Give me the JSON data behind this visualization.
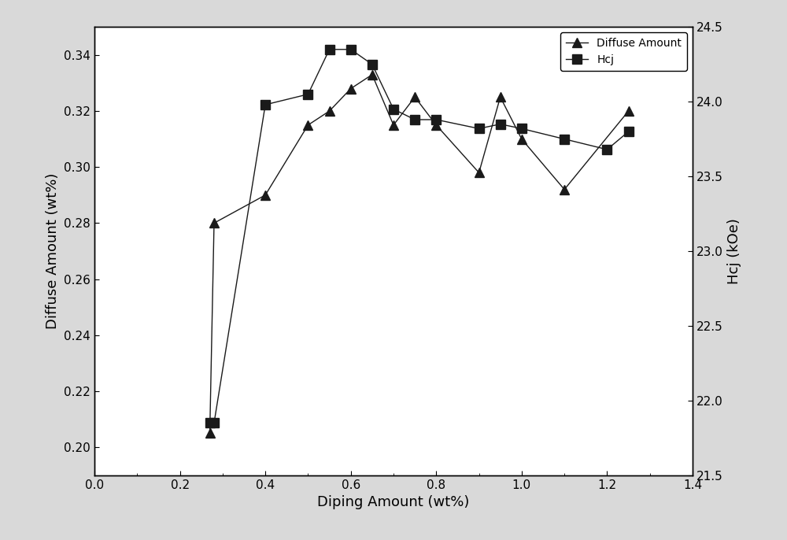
{
  "diffuse_x": [
    0.27,
    0.28,
    0.4,
    0.5,
    0.55,
    0.6,
    0.65,
    0.7,
    0.75,
    0.8,
    0.9,
    0.95,
    1.0,
    1.1,
    1.25
  ],
  "diffuse_y": [
    0.205,
    0.28,
    0.29,
    0.315,
    0.32,
    0.328,
    0.333,
    0.315,
    0.325,
    0.315,
    0.298,
    0.325,
    0.31,
    0.292,
    0.32
  ],
  "hcj_x": [
    0.27,
    0.28,
    0.4,
    0.5,
    0.55,
    0.6,
    0.65,
    0.7,
    0.75,
    0.8,
    0.9,
    0.95,
    1.0,
    1.1,
    1.2,
    1.25
  ],
  "hcj_y": [
    21.85,
    21.85,
    23.98,
    24.05,
    24.35,
    24.35,
    24.25,
    23.95,
    23.88,
    23.88,
    23.82,
    23.85,
    23.82,
    23.75,
    23.68,
    23.8
  ],
  "xlabel": "Diping Amount (wt%)",
  "ylabel_left": "Diffuse Amount (wt%)",
  "ylabel_right": "Hcj (kOe)",
  "legend_diffuse": "Diffuse Amount",
  "legend_hcj": "Hcj",
  "xlim": [
    0.0,
    1.4
  ],
  "ylim_left": [
    0.19,
    0.35
  ],
  "ylim_right": [
    21.5,
    24.5
  ],
  "xticks": [
    0.0,
    0.2,
    0.4,
    0.6,
    0.8,
    1.0,
    1.2,
    1.4
  ],
  "yticks_left": [
    0.2,
    0.22,
    0.24,
    0.26,
    0.28,
    0.3,
    0.32,
    0.34
  ],
  "yticks_right": [
    21.5,
    22.0,
    22.5,
    23.0,
    23.5,
    24.0,
    24.5
  ],
  "line_color": "#1a1a1a",
  "plot_bg_color": "#ffffff",
  "fig_bg_color": "#d9d9d9",
  "font_size_label": 13,
  "font_size_tick": 11,
  "font_size_legend": 10
}
